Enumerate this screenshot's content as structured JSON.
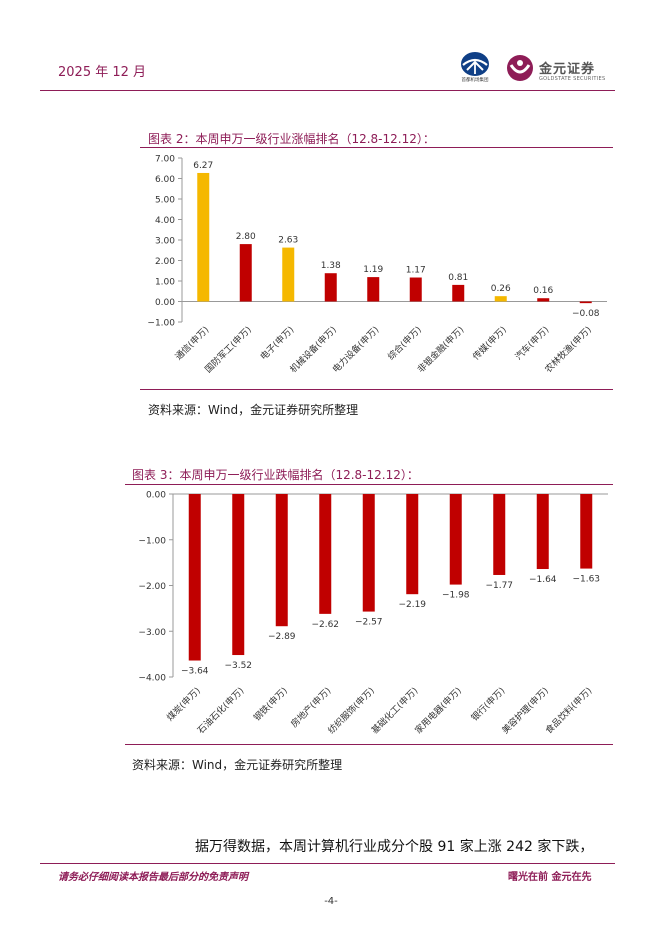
{
  "header": {
    "date": "2025 年 12 月",
    "logo_left_text": "首都机场集团",
    "logo_right_name": "金元证券",
    "logo_right_en": "GOLDSTATE SECURITIES",
    "brand_color": "#8e1d57"
  },
  "figures": [
    {
      "title": "图表 2：本周申万一级行业涨幅排名（12.8-12.12）：",
      "source": "资料来源：Wind，金元证券研究所整理"
    },
    {
      "title": "图表 3：本周申万一级行业跌幅排名（12.8-12.12）：",
      "source": "资料来源：Wind，金元证券研究所整理"
    }
  ],
  "chart_data": [
    {
      "type": "bar",
      "categories": [
        "通信(申万)",
        "国防军工(申万)",
        "电子(申万)",
        "机械设备(申万)",
        "电力设备(申万)",
        "综合(申万)",
        "非银金融(申万)",
        "传媒(申万)",
        "汽车(申万)",
        "农林牧渔(申万)"
      ],
      "values": [
        6.27,
        2.8,
        2.63,
        1.38,
        1.19,
        1.17,
        0.81,
        0.26,
        0.16,
        -0.08
      ],
      "value_labels": [
        "6.27",
        "2.80",
        "2.63",
        "1.38",
        "1.19",
        "1.17",
        "0.81",
        "0.26",
        "0.16",
        "−0.08"
      ],
      "colors": [
        "#f5b800",
        "#c00000",
        "#f5b800",
        "#c00000",
        "#c00000",
        "#c00000",
        "#c00000",
        "#f5b800",
        "#c00000",
        "#c00000"
      ],
      "yticks": [
        7,
        6,
        5,
        4,
        3,
        2,
        1,
        0,
        -1
      ],
      "ytick_labels": [
        "7.00",
        "6.00",
        "5.00",
        "4.00",
        "3.00",
        "2.00",
        "1.00",
        "0.00",
        "−1.00"
      ],
      "ylim": [
        -1,
        7
      ],
      "grid": false,
      "legend": false
    },
    {
      "type": "bar",
      "categories": [
        "煤炭(申万)",
        "石油石化(申万)",
        "钢铁(申万)",
        "房地产(申万)",
        "纺织服饰(申万)",
        "基础化工(申万)",
        "家用电器(申万)",
        "银行(申万)",
        "美容护理(申万)",
        "食品饮料(申万)"
      ],
      "values": [
        -3.64,
        -3.52,
        -2.89,
        -2.62,
        -2.57,
        -2.19,
        -1.98,
        -1.77,
        -1.64,
        -1.63
      ],
      "value_labels": [
        "−3.64",
        "−3.52",
        "−2.89",
        "−2.62",
        "−2.57",
        "−2.19",
        "−1.98",
        "−1.77",
        "−1.64",
        "−1.63"
      ],
      "colors": [
        "#c00000",
        "#c00000",
        "#c00000",
        "#c00000",
        "#c00000",
        "#c00000",
        "#c00000",
        "#c00000",
        "#c00000",
        "#c00000"
      ],
      "yticks": [
        0,
        -1,
        -2,
        -3,
        -4
      ],
      "ytick_labels": [
        "0.00",
        "−1.00",
        "−2.00",
        "−3.00",
        "−4.00"
      ],
      "ylim": [
        -4,
        0
      ],
      "grid": false,
      "legend": false
    }
  ],
  "body_text": "据万得数据，本周计算机行业成分个股 91 家上涨 242 家下跌，",
  "footer": {
    "disclaimer": "请务必仔细阅读本报告最后部分的免责声明",
    "slogan": "曙光在前 金元在先",
    "page_number": "-4-"
  }
}
